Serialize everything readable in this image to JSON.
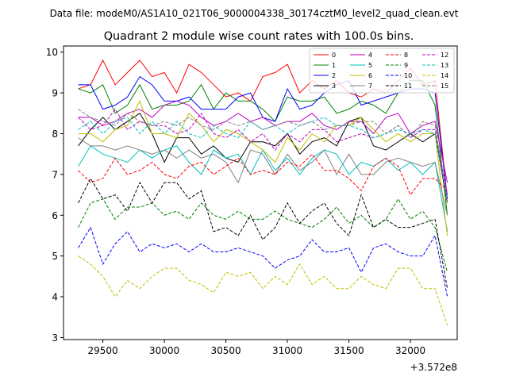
{
  "header": {
    "suptitle": "Data file: modeM0/AS1A10_021T06_9000004338_30174cztM0_level2_quad_clean.evt"
  },
  "chart_data": {
    "type": "line",
    "title": "Quadrant 2 module wise count rates with 100.0s bins.",
    "xlabel": "",
    "ylabel": "",
    "x_offset_label": "+3.572e8",
    "xlim": [
      29180,
      32380
    ],
    "ylim": [
      2.95,
      10.15
    ],
    "xticks": [
      29500,
      30000,
      30500,
      31000,
      31500,
      32000
    ],
    "xtick_labels": [
      "29500",
      "30000",
      "30500",
      "31000",
      "31500",
      "32000"
    ],
    "yticks": [
      3,
      4,
      5,
      6,
      7,
      8,
      9,
      10
    ],
    "ytick_labels": [
      "3",
      "4",
      "5",
      "6",
      "7",
      "8",
      "9",
      "10"
    ],
    "grid": false,
    "legend_placement": "top-right",
    "x": [
      29300,
      29400,
      29500,
      29600,
      29700,
      29800,
      29900,
      30000,
      30100,
      30200,
      30300,
      30400,
      30500,
      30600,
      30700,
      30800,
      30900,
      31000,
      31100,
      31200,
      31300,
      31400,
      31500,
      31600,
      31700,
      31800,
      31900,
      32000,
      32100,
      32200,
      32300
    ],
    "series": [
      {
        "name": "0",
        "color": "#ff0000",
        "dash": false,
        "values": [
          9.1,
          9.2,
          9.8,
          9.2,
          9.5,
          9.8,
          9.4,
          9.5,
          9.0,
          9.7,
          9.5,
          9.2,
          8.9,
          9.0,
          8.8,
          9.4,
          9.5,
          9.7,
          9.0,
          9.3,
          9.1,
          9.3,
          9.0,
          8.9,
          9.1,
          9.0,
          9.3,
          9.6,
          9.2,
          9.3,
          6.4
        ]
      },
      {
        "name": "1",
        "color": "#008000",
        "dash": false,
        "values": [
          9.1,
          9.0,
          9.2,
          8.5,
          8.7,
          9.2,
          8.6,
          8.7,
          8.7,
          8.8,
          9.2,
          8.6,
          9.0,
          8.8,
          8.8,
          8.6,
          8.3,
          8.9,
          8.8,
          8.8,
          8.9,
          8.5,
          8.6,
          8.8,
          8.7,
          8.5,
          9.0,
          9.3,
          9.3,
          8.7,
          6.0
        ]
      },
      {
        "name": "2",
        "color": "#0000ff",
        "dash": false,
        "values": [
          9.2,
          9.2,
          8.6,
          8.7,
          8.9,
          9.4,
          9.2,
          8.8,
          8.8,
          8.9,
          8.6,
          8.6,
          8.6,
          8.9,
          9.0,
          8.4,
          8.3,
          9.1,
          8.6,
          8.7,
          9.0,
          9.2,
          9.3,
          8.7,
          8.8,
          8.9,
          9.0,
          9.1,
          9.1,
          9.0,
          6.4
        ]
      },
      {
        "name": "3",
        "color": "#000000",
        "dash": false,
        "values": [
          7.7,
          8.1,
          8.4,
          8.1,
          8.3,
          8.5,
          8.0,
          7.3,
          7.9,
          7.9,
          7.5,
          7.7,
          7.4,
          7.3,
          7.8,
          7.8,
          7.7,
          8.0,
          7.5,
          7.8,
          7.9,
          7.7,
          8.3,
          8.4,
          7.7,
          7.6,
          7.8,
          8.0,
          7.8,
          8.0,
          6.3
        ]
      },
      {
        "name": "4",
        "color": "#bf00bf",
        "dash": false,
        "values": [
          8.4,
          8.4,
          8.2,
          8.3,
          8.5,
          8.6,
          8.4,
          8.7,
          8.8,
          8.7,
          8.4,
          8.2,
          8.3,
          8.5,
          8.3,
          8.4,
          8.2,
          8.3,
          8.3,
          8.5,
          8.2,
          8.1,
          8.3,
          8.3,
          8.0,
          8.4,
          8.5,
          8.0,
          8.2,
          8.3,
          6.8
        ]
      },
      {
        "name": "5",
        "color": "#00bfbf",
        "dash": false,
        "values": [
          7.2,
          7.7,
          7.5,
          7.4,
          7.3,
          7.6,
          7.4,
          7.6,
          7.7,
          7.3,
          7.0,
          7.6,
          7.4,
          7.5,
          7.0,
          7.6,
          7.1,
          7.4,
          7.0,
          7.4,
          7.6,
          7.5,
          7.0,
          7.3,
          7.2,
          7.4,
          7.1,
          7.3,
          7.0,
          7.3,
          5.6
        ]
      },
      {
        "name": "6",
        "color": "#bfbf00",
        "dash": false,
        "values": [
          8.0,
          8.0,
          7.8,
          8.1,
          8.2,
          8.8,
          8.0,
          8.0,
          7.9,
          8.5,
          8.2,
          7.8,
          8.1,
          8.0,
          7.8,
          7.6,
          7.3,
          7.9,
          7.6,
          8.0,
          7.8,
          8.2,
          8.2,
          8.4,
          8.1,
          7.8,
          8.0,
          7.8,
          8.0,
          8.0,
          5.5
        ]
      },
      {
        "name": "7",
        "color": "#808080",
        "dash": false,
        "values": [
          7.9,
          7.7,
          7.7,
          7.6,
          7.7,
          7.6,
          7.5,
          7.6,
          7.4,
          7.6,
          7.4,
          7.5,
          7.3,
          6.8,
          7.6,
          7.5,
          7.0,
          7.5,
          7.1,
          7.3,
          7.6,
          7.0,
          7.5,
          7.0,
          7.0,
          7.3,
          7.4,
          7.3,
          7.2,
          7.3,
          6.0
        ]
      },
      {
        "name": "8",
        "color": "#ff0000",
        "dash": true,
        "values": [
          7.1,
          6.8,
          6.9,
          7.4,
          7.0,
          7.1,
          7.3,
          7.0,
          6.9,
          7.2,
          7.3,
          7.0,
          7.2,
          7.4,
          7.0,
          7.1,
          7.0,
          7.3,
          7.2,
          7.5,
          7.1,
          7.1,
          6.9,
          6.6,
          7.2,
          7.4,
          7.2,
          6.5,
          6.9,
          6.9,
          6.6
        ]
      },
      {
        "name": "9",
        "color": "#008000",
        "dash": true,
        "values": [
          5.7,
          6.3,
          6.4,
          5.9,
          6.2,
          6.2,
          6.3,
          6.0,
          6.1,
          5.9,
          6.3,
          6.0,
          5.9,
          6.1,
          5.9,
          5.9,
          6.1,
          5.9,
          5.8,
          5.7,
          5.9,
          6.2,
          5.8,
          6.0,
          5.7,
          5.9,
          6.4,
          5.9,
          6.1,
          5.7,
          4.6
        ]
      },
      {
        "name": "10",
        "color": "#0000ff",
        "dash": true,
        "values": [
          5.2,
          5.7,
          4.8,
          5.3,
          5.6,
          5.1,
          5.3,
          5.2,
          5.3,
          5.1,
          5.3,
          5.1,
          5.1,
          5.2,
          5.1,
          5.0,
          4.7,
          4.9,
          5.0,
          5.4,
          5.1,
          5.1,
          5.2,
          4.6,
          5.2,
          5.3,
          5.1,
          5.0,
          5.0,
          5.5,
          4.0
        ]
      },
      {
        "name": "11",
        "color": "#000000",
        "dash": true,
        "values": [
          6.3,
          6.9,
          6.4,
          6.5,
          6.1,
          6.8,
          6.3,
          6.8,
          6.8,
          6.4,
          6.6,
          5.6,
          5.7,
          5.5,
          6.0,
          5.4,
          5.7,
          6.3,
          5.8,
          6.1,
          6.3,
          5.8,
          5.5,
          6.5,
          5.7,
          5.9,
          5.7,
          5.7,
          5.8,
          5.9,
          4.2
        ]
      },
      {
        "name": "12",
        "color": "#bf00bf",
        "dash": true,
        "values": [
          8.4,
          8.1,
          8.2,
          8.6,
          8.1,
          8.3,
          8.2,
          8.2,
          8.0,
          8.1,
          8.5,
          8.0,
          7.9,
          8.1,
          7.8,
          8.0,
          7.6,
          8.0,
          7.8,
          8.1,
          8.1,
          7.8,
          7.9,
          8.0,
          7.9,
          8.0,
          8.2,
          7.9,
          8.1,
          8.1,
          6.5
        ]
      },
      {
        "name": "13",
        "color": "#00bfbf",
        "dash": true,
        "values": [
          8.1,
          8.3,
          8.0,
          8.3,
          8.4,
          8.0,
          8.3,
          8.0,
          8.3,
          8.0,
          7.9,
          8.2,
          8.0,
          7.9,
          8.3,
          8.1,
          8.2,
          8.0,
          8.2,
          8.3,
          8.4,
          8.2,
          8.2,
          8.1,
          7.9,
          8.0,
          8.1,
          8.0,
          8.1,
          8.0,
          6.4
        ]
      },
      {
        "name": "14",
        "color": "#bfbf00",
        "dash": true,
        "values": [
          5.0,
          4.8,
          4.5,
          4.0,
          4.4,
          4.2,
          4.5,
          4.7,
          4.7,
          4.4,
          4.3,
          4.1,
          4.6,
          4.5,
          4.6,
          4.2,
          4.5,
          4.3,
          4.8,
          4.3,
          4.5,
          4.2,
          4.2,
          4.5,
          4.3,
          4.2,
          4.7,
          4.7,
          4.2,
          4.2,
          3.3
        ]
      },
      {
        "name": "15",
        "color": "#808080",
        "dash": true,
        "values": [
          8.6,
          8.4,
          8.3,
          8.2,
          8.5,
          8.3,
          8.2,
          8.3,
          8.2,
          8.4,
          8.2,
          8.1,
          8.3,
          8.2,
          8.3,
          8.1,
          8.2,
          8.3,
          8.2,
          8.3,
          8.1,
          8.2,
          8.2,
          8.3,
          8.3,
          8.0,
          8.2,
          7.9,
          8.3,
          8.2,
          6.3
        ]
      }
    ]
  }
}
